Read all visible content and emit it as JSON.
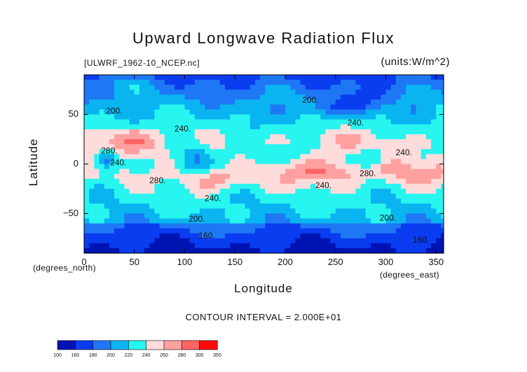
{
  "chart_data": {
    "type": "heatmap",
    "title": "Upward Longwave Radiation Flux",
    "file_label": "[ULWRF_1962-10_NCEP.nc]",
    "units_label": "(units:W/m^2)",
    "xlabel": "Longitude",
    "ylabel": "Latitude",
    "x_unit_label": "(degrees_east)",
    "y_unit_label": "(degrees_north)",
    "xlim": [
      0,
      357.5
    ],
    "ylim": [
      -90,
      90
    ],
    "x_ticks": [
      0,
      50,
      100,
      150,
      200,
      250,
      300,
      350
    ],
    "y_ticks": [
      -50,
      0,
      50
    ],
    "contour_interval_text": "CONTOUR INTERVAL = 2.000E+01",
    "contour_labels": [
      {
        "text": "200.",
        "lon": 225,
        "lat": 64
      },
      {
        "text": "200.",
        "lon": 30,
        "lat": 53
      },
      {
        "text": "240.",
        "lon": 98,
        "lat": 35
      },
      {
        "text": "240.",
        "lon": 270,
        "lat": 41
      },
      {
        "text": "280.",
        "lon": 25,
        "lat": 13
      },
      {
        "text": "240.",
        "lon": 34,
        "lat": 1
      },
      {
        "text": "240.",
        "lon": 318,
        "lat": 11
      },
      {
        "text": "280.",
        "lon": 73,
        "lat": -17
      },
      {
        "text": "280.",
        "lon": 282,
        "lat": -10
      },
      {
        "text": "240.",
        "lon": 238,
        "lat": -22
      },
      {
        "text": "240.",
        "lon": 128,
        "lat": -35
      },
      {
        "text": "200.",
        "lon": 112,
        "lat": -56
      },
      {
        "text": "200.",
        "lon": 302,
        "lat": -55
      },
      {
        "text": "160.",
        "lon": 122,
        "lat": -73
      },
      {
        "text": "160.",
        "lon": 335,
        "lat": -77
      }
    ],
    "colorbar": {
      "levels": [
        100,
        160,
        180,
        200,
        220,
        240,
        260,
        280,
        300,
        350
      ],
      "level_labels": [
        "100",
        "160",
        "180",
        "200",
        "220",
        "240",
        "260",
        "280",
        "300",
        "350"
      ],
      "colors": [
        "#0014b4",
        "#0a3cf0",
        "#1e78f5",
        "#0ab4f0",
        "#28f5f0",
        "#ffdcdc",
        "#ffa0a0",
        "#ff6464",
        "#ff0a0a"
      ]
    }
  }
}
